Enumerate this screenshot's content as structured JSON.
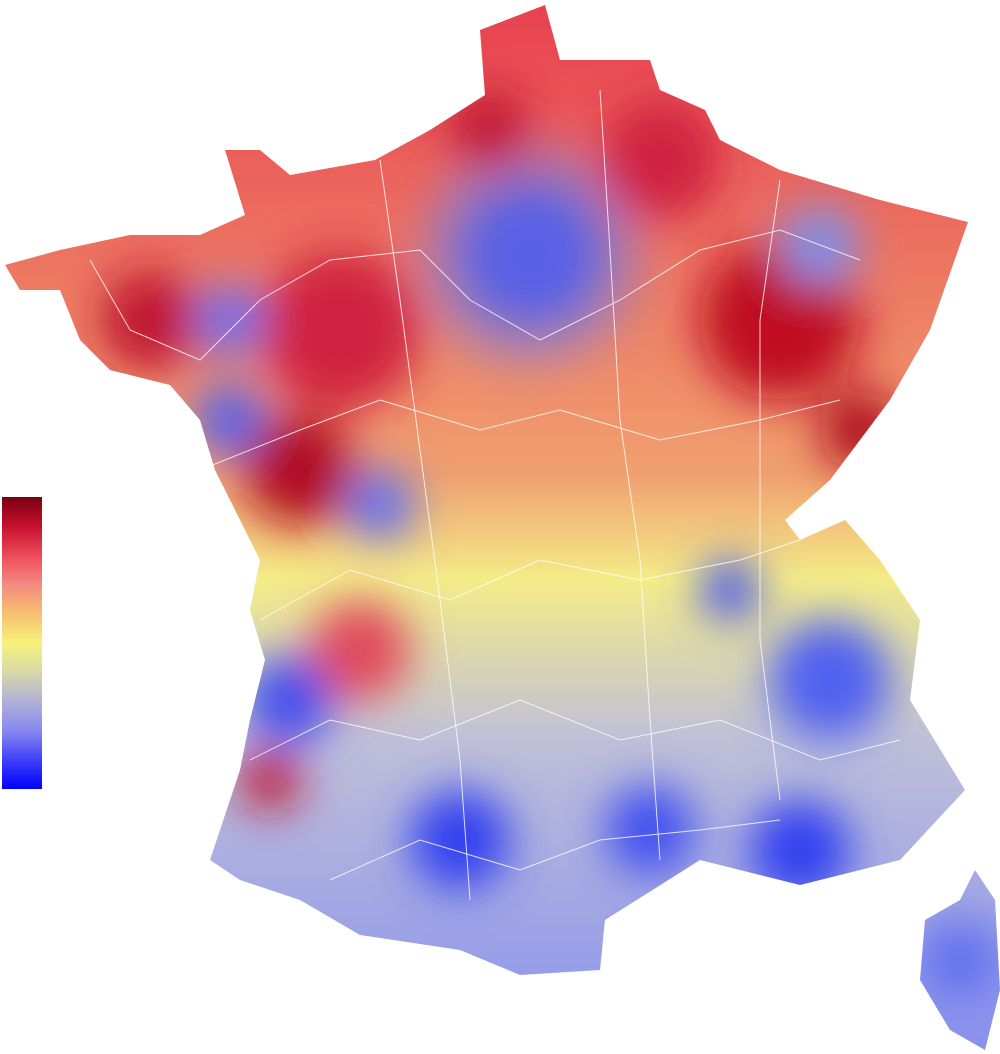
{
  "legend": {
    "colors": [
      "#7a0010",
      "#c8102e",
      "#ee4a5a",
      "#f48a80",
      "#f6c070",
      "#f6f27a",
      "#d8d8a8",
      "#b0b0d8",
      "#8888f0",
      "#4040f8",
      "#0000ff"
    ]
  }
}
